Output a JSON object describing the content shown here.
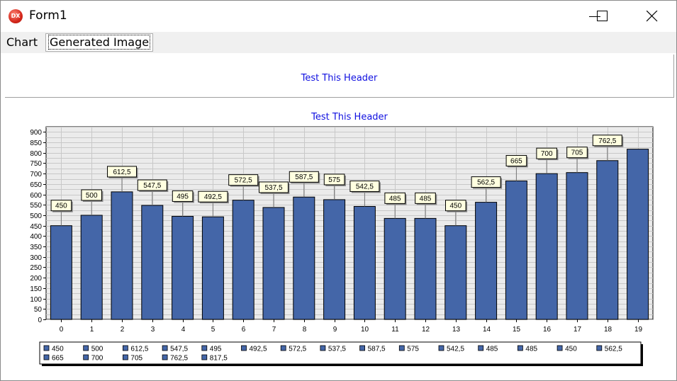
{
  "window": {
    "title": "Form1",
    "icon_text": "DX"
  },
  "tabs": [
    {
      "label": "Chart"
    },
    {
      "label": "Generated Image"
    }
  ],
  "header": {
    "text": "Test This Header"
  },
  "colors": {
    "bar": "#4466a8",
    "header_text": "#1010e0",
    "plot_bg": "#ebebeb"
  },
  "chart_data": {
    "type": "bar",
    "title": "Test This Header",
    "categories": [
      "0",
      "1",
      "2",
      "3",
      "4",
      "5",
      "6",
      "7",
      "8",
      "9",
      "10",
      "11",
      "12",
      "13",
      "14",
      "15",
      "16",
      "17",
      "18",
      "19"
    ],
    "values": [
      450,
      500,
      612.5,
      547.5,
      495,
      492.5,
      572.5,
      537.5,
      587.5,
      575,
      542.5,
      485,
      485,
      450,
      562.5,
      665,
      700,
      705,
      762.5,
      817.5
    ],
    "value_labels": [
      "450",
      "500",
      "612,5",
      "547,5",
      "495",
      "492,5",
      "572,5",
      "537,5",
      "587,5",
      "575",
      "542,5",
      "485",
      "485",
      "450",
      "562,5",
      "665",
      "700",
      "705",
      "762,5",
      ""
    ],
    "legend": [
      "450",
      "500",
      "612,5",
      "547,5",
      "495",
      "492,5",
      "572,5",
      "537,5",
      "587,5",
      "575",
      "542,5",
      "485",
      "485",
      "450",
      "562,5",
      "665",
      "700",
      "705",
      "762,5",
      "817,5"
    ],
    "ylim": [
      0,
      925
    ],
    "yticks": [
      0,
      50,
      100,
      150,
      200,
      250,
      300,
      350,
      400,
      450,
      500,
      550,
      600,
      650,
      700,
      750,
      800,
      850,
      900
    ],
    "grid": true,
    "legend_position": "bottom"
  }
}
